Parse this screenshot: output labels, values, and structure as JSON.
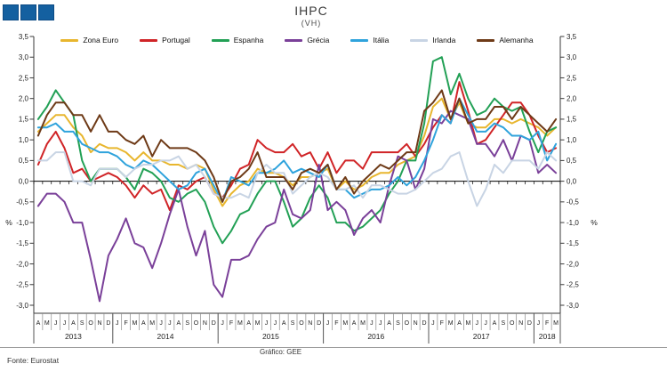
{
  "header": {
    "title": "IHPC",
    "subtitle": "(VH)",
    "logo_color": "#1460A0",
    "logo_square_count": 3
  },
  "footer": {
    "source": "Fonte:  Eurostat",
    "credit": "Gráfico: GEE"
  },
  "axes": {
    "y_unit": "%",
    "y_tick_labels": [
      "3,5",
      "3,0",
      "2,5",
      "2,0",
      "1,5",
      "1,0",
      "0,5",
      "0,0",
      "-0,5",
      "-1,0",
      "-1,5",
      "-2,0",
      "-2,5",
      "-3,0"
    ],
    "y_max": 3.5,
    "y_min": -3.0,
    "y_step": 0.5
  },
  "chart_data": {
    "type": "line",
    "title": "IHPC",
    "subtitle": "(VH)",
    "ylabel": "%",
    "ylim": [
      -3.0,
      3.5
    ],
    "grid": false,
    "zero_line": true,
    "legend_position": "top",
    "x_months": [
      "A",
      "M",
      "J",
      "J",
      "A",
      "S",
      "O",
      "N",
      "D",
      "J",
      "F",
      "M",
      "A",
      "M",
      "J",
      "J",
      "A",
      "S",
      "O",
      "N",
      "D",
      "J",
      "F",
      "M",
      "A",
      "M",
      "J",
      "J",
      "A",
      "S",
      "O",
      "N",
      "D",
      "J",
      "F",
      "M",
      "A",
      "M",
      "J",
      "J",
      "A",
      "S",
      "O",
      "N",
      "D",
      "J",
      "F",
      "M",
      "A",
      "M",
      "J",
      "J",
      "A",
      "S",
      "O",
      "N",
      "D",
      "J",
      "F",
      "M"
    ],
    "x_years": [
      {
        "label": "2013",
        "months": 9
      },
      {
        "label": "2014",
        "months": 12
      },
      {
        "label": "2015",
        "months": 12
      },
      {
        "label": "2016",
        "months": 12
      },
      {
        "label": "2017",
        "months": 12
      },
      {
        "label": "2018",
        "months": 3
      }
    ],
    "series": [
      {
        "name": "Zona Euro",
        "color": "#E8B62E",
        "values": [
          1.2,
          1.4,
          1.6,
          1.6,
          1.3,
          1.1,
          0.7,
          0.9,
          0.8,
          0.8,
          0.7,
          0.5,
          0.7,
          0.5,
          0.5,
          0.4,
          0.4,
          0.3,
          0.4,
          0.3,
          -0.2,
          -0.6,
          -0.3,
          -0.1,
          0.0,
          0.3,
          0.2,
          0.2,
          0.1,
          -0.1,
          0.1,
          0.1,
          0.2,
          0.3,
          -0.2,
          0.0,
          -0.2,
          -0.1,
          0.1,
          0.2,
          0.2,
          0.4,
          0.5,
          0.6,
          1.1,
          1.8,
          2.0,
          1.5,
          1.9,
          1.4,
          1.3,
          1.3,
          1.5,
          1.5,
          1.4,
          1.5,
          1.4,
          1.3,
          1.1,
          1.3
        ]
      },
      {
        "name": "Portugal",
        "color": "#D02427",
        "values": [
          0.4,
          0.9,
          1.2,
          0.8,
          0.2,
          0.3,
          0.0,
          0.1,
          0.2,
          0.1,
          -0.1,
          -0.4,
          -0.1,
          -0.3,
          -0.2,
          -0.7,
          -0.1,
          -0.2,
          0.0,
          0.1,
          -0.3,
          -0.4,
          -0.1,
          0.3,
          0.4,
          1.0,
          0.8,
          0.7,
          0.7,
          0.9,
          0.6,
          0.7,
          0.3,
          0.7,
          0.2,
          0.5,
          0.5,
          0.3,
          0.7,
          0.7,
          0.7,
          0.7,
          0.9,
          0.6,
          0.9,
          1.3,
          1.6,
          1.4,
          2.4,
          1.7,
          0.9,
          1.0,
          1.3,
          1.6,
          1.9,
          1.9,
          1.6,
          1.1,
          0.7,
          0.8
        ]
      },
      {
        "name": "Espanha",
        "color": "#22A055",
        "values": [
          1.5,
          1.8,
          2.2,
          1.9,
          1.6,
          0.5,
          0.0,
          0.3,
          0.3,
          0.3,
          0.1,
          -0.2,
          0.3,
          0.2,
          0.0,
          -0.4,
          -0.5,
          -0.3,
          -0.2,
          -0.5,
          -1.1,
          -1.5,
          -1.2,
          -0.8,
          -0.7,
          -0.3,
          0.0,
          0.0,
          -0.5,
          -1.1,
          -0.9,
          -0.4,
          -0.1,
          -0.4,
          -1.0,
          -1.0,
          -1.2,
          -1.1,
          -0.9,
          -0.7,
          -0.3,
          0.0,
          0.5,
          0.5,
          1.4,
          2.9,
          3.0,
          2.1,
          2.6,
          2.0,
          1.6,
          1.7,
          2.0,
          1.8,
          1.7,
          1.8,
          1.2,
          0.7,
          1.2,
          1.3
        ]
      },
      {
        "name": "Grécia",
        "color": "#7A4099",
        "values": [
          -0.6,
          -0.3,
          -0.3,
          -0.5,
          -1.0,
          -1.0,
          -1.9,
          -2.9,
          -1.8,
          -1.4,
          -0.9,
          -1.5,
          -1.6,
          -2.1,
          -1.5,
          -0.8,
          -0.2,
          -1.1,
          -1.8,
          -1.2,
          -2.5,
          -2.8,
          -1.9,
          -1.9,
          -1.8,
          -1.4,
          -1.1,
          -1.0,
          -0.2,
          -0.8,
          -0.9,
          -0.7,
          0.4,
          -0.7,
          -0.5,
          -0.7,
          -1.3,
          -0.9,
          -0.7,
          -1.0,
          -0.1,
          0.6,
          0.5,
          -0.2,
          0.3,
          1.5,
          1.4,
          1.7,
          1.6,
          1.5,
          0.9,
          0.9,
          0.6,
          1.0,
          0.5,
          1.1,
          1.0,
          0.2,
          0.4,
          0.2
        ]
      },
      {
        "name": "Itália",
        "color": "#2FA3DC",
        "values": [
          1.3,
          1.3,
          1.4,
          1.2,
          1.2,
          0.9,
          0.8,
          0.7,
          0.7,
          0.6,
          0.4,
          0.3,
          0.5,
          0.4,
          0.2,
          0.0,
          -0.2,
          -0.1,
          0.2,
          0.3,
          -0.1,
          -0.5,
          0.1,
          0.0,
          -0.1,
          0.2,
          0.2,
          0.3,
          0.5,
          0.2,
          0.3,
          0.2,
          0.1,
          0.4,
          -0.2,
          -0.2,
          -0.4,
          -0.3,
          -0.2,
          -0.2,
          -0.1,
          0.1,
          -0.1,
          0.1,
          0.5,
          1.0,
          1.6,
          1.4,
          2.0,
          1.6,
          1.2,
          1.2,
          1.4,
          1.3,
          1.1,
          1.1,
          1.0,
          1.2,
          0.5,
          0.9
        ]
      },
      {
        "name": "Irlanda",
        "color": "#C8D4E4",
        "values": [
          0.5,
          0.5,
          0.7,
          0.7,
          0.0,
          0.0,
          -0.1,
          0.3,
          0.3,
          0.3,
          0.1,
          0.3,
          0.4,
          0.4,
          0.5,
          0.5,
          0.6,
          0.3,
          0.4,
          0.1,
          -0.3,
          -0.4,
          -0.4,
          -0.3,
          -0.4,
          0.2,
          0.4,
          0.2,
          0.2,
          -0.3,
          -0.1,
          0.1,
          0.2,
          0.1,
          -0.2,
          -0.2,
          -0.1,
          -0.4,
          -0.1,
          -0.1,
          -0.2,
          -0.3,
          -0.3,
          -0.2,
          0.0,
          0.2,
          0.3,
          0.6,
          0.7,
          0.0,
          -0.6,
          -0.2,
          0.4,
          0.2,
          0.5,
          0.5,
          0.5,
          0.3,
          0.7,
          0.5
        ]
      },
      {
        "name": "Alemanha",
        "color": "#6E3A17",
        "values": [
          1.1,
          1.6,
          1.9,
          1.9,
          1.6,
          1.6,
          1.2,
          1.6,
          1.2,
          1.2,
          1.0,
          0.9,
          1.1,
          0.6,
          1.0,
          0.8,
          0.8,
          0.8,
          0.7,
          0.5,
          0.1,
          -0.5,
          0.0,
          0.1,
          0.3,
          0.7,
          0.1,
          0.1,
          0.1,
          -0.2,
          0.2,
          0.3,
          0.2,
          0.4,
          -0.2,
          0.1,
          -0.3,
          0.0,
          0.2,
          0.4,
          0.3,
          0.5,
          0.7,
          0.7,
          1.7,
          1.9,
          2.2,
          1.5,
          2.0,
          1.4,
          1.5,
          1.5,
          1.8,
          1.8,
          1.5,
          1.8,
          1.6,
          1.4,
          1.2,
          1.5
        ]
      }
    ]
  }
}
